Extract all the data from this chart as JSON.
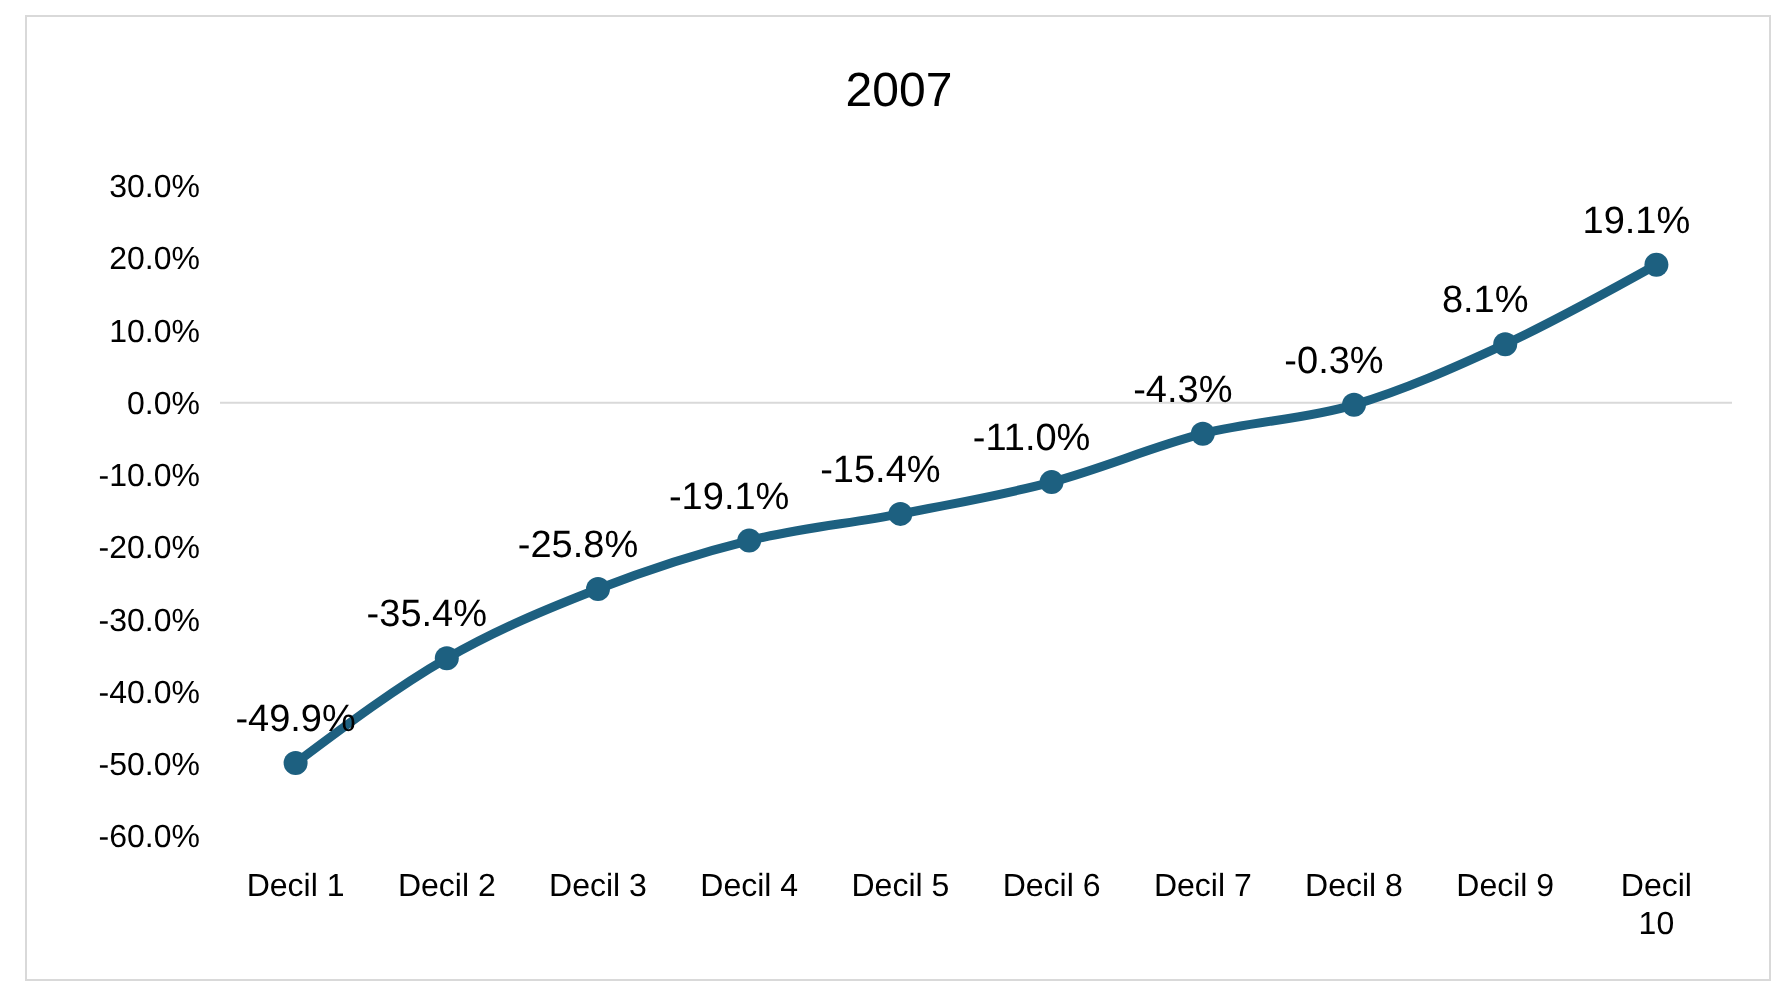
{
  "chart_data": {
    "type": "line",
    "title": "2007",
    "categories": [
      "Decil 1",
      "Decil 2",
      "Decil 3",
      "Decil 4",
      "Decil 5",
      "Decil 6",
      "Decil 7",
      "Decil 8",
      "Decil 9",
      "Decil 10"
    ],
    "series": [
      {
        "color": "#1d6080",
        "values": [
          -49.9,
          -35.4,
          -25.8,
          -19.1,
          -15.4,
          -11.0,
          -4.3,
          -0.3,
          8.1,
          19.1
        ],
        "value_labels": [
          "-49.9%",
          "-35.4%",
          "-25.8%",
          "-19.1%",
          "-15.4%",
          "-11.0%",
          "-4.3%",
          "-0.3%",
          "8.1%",
          "19.1%"
        ]
      }
    ],
    "ylim": [
      -60,
      30
    ],
    "yticks": [
      {
        "value": 30,
        "label": "30.0%"
      },
      {
        "value": 20,
        "label": "20.0%"
      },
      {
        "value": 10,
        "label": "10.0%"
      },
      {
        "value": 0,
        "label": "0.0%"
      },
      {
        "value": -10,
        "label": "-10.0%"
      },
      {
        "value": -20,
        "label": "-20.0%"
      },
      {
        "value": -30,
        "label": "-30.0%"
      },
      {
        "value": -40,
        "label": "-40.0%"
      },
      {
        "value": -50,
        "label": "-50.0%"
      },
      {
        "value": -60,
        "label": "-60.0%"
      }
    ],
    "marker": "circle",
    "line_style": "solid"
  }
}
